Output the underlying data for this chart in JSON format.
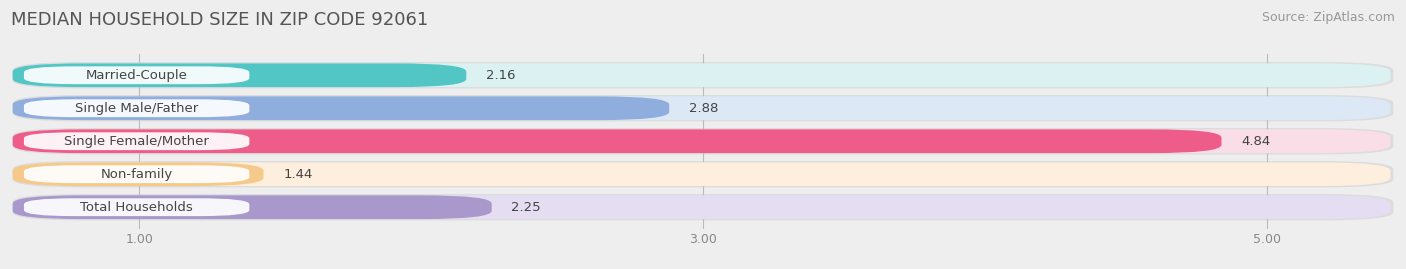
{
  "title": "MEDIAN HOUSEHOLD SIZE IN ZIP CODE 92061",
  "source": "Source: ZipAtlas.com",
  "categories": [
    "Married-Couple",
    "Single Male/Father",
    "Single Female/Mother",
    "Non-family",
    "Total Households"
  ],
  "values": [
    2.16,
    2.88,
    4.84,
    1.44,
    2.25
  ],
  "bar_colors": [
    "#52C5C5",
    "#90AEDD",
    "#EE5C8A",
    "#F5C98A",
    "#A898CC"
  ],
  "bar_bg_colors": [
    "#DCF2F2",
    "#DDE8F7",
    "#F9DDE7",
    "#FDEEDD",
    "#E5DEF2"
  ],
  "xlim_min": 0.55,
  "xlim_max": 5.45,
  "xticks": [
    1.0,
    3.0,
    5.0
  ],
  "xtick_labels": [
    "1.00",
    "3.00",
    "5.00"
  ],
  "title_fontsize": 13,
  "source_fontsize": 9,
  "label_fontsize": 9.5,
  "value_fontsize": 9.5,
  "background_color": "#eeeeee",
  "bar_bg_color_global": "#e8e8e8"
}
